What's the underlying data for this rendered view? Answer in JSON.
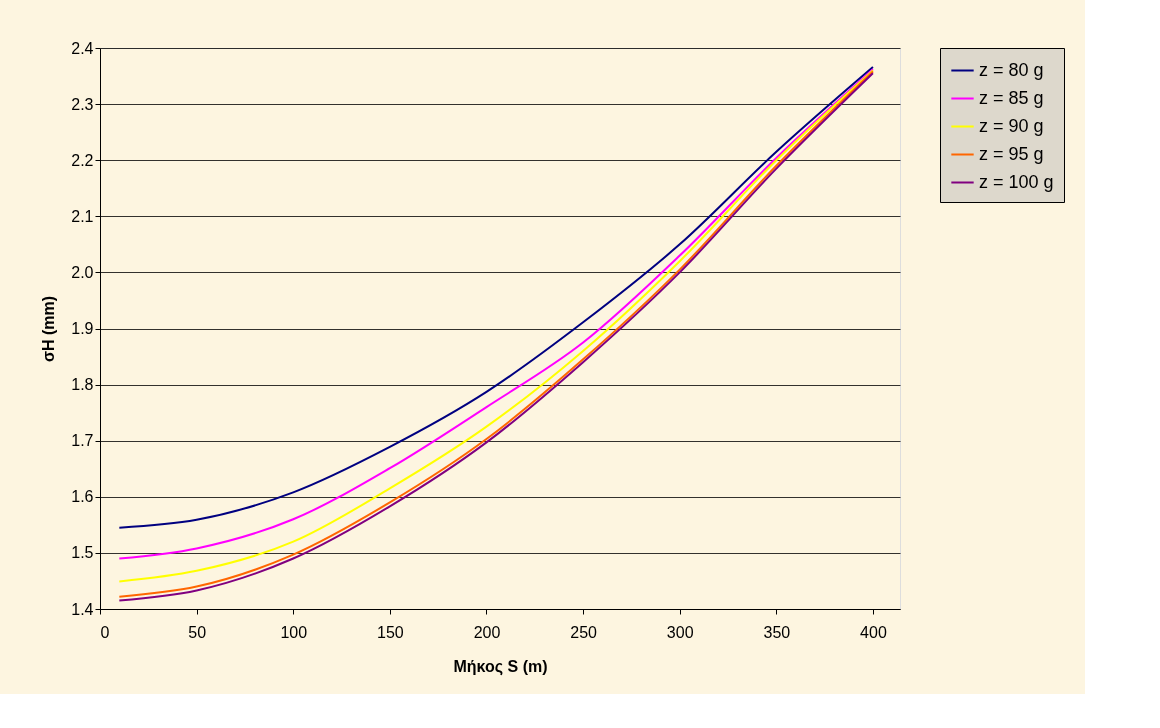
{
  "chart_data": {
    "type": "line",
    "xlabel": "Μήκος S (m)",
    "ylabel": "σH (mm)",
    "x": [
      10,
      50,
      100,
      150,
      200,
      250,
      300,
      350,
      400
    ],
    "xlim": [
      0,
      414
    ],
    "xticks": [
      0,
      50,
      100,
      150,
      200,
      250,
      300,
      350,
      400
    ],
    "ylim": [
      1.4,
      2.4
    ],
    "yticks": [
      {
        "value": 1.4,
        "label": "1.4"
      },
      {
        "value": 1.5,
        "label": "1.5"
      },
      {
        "value": 1.6,
        "label": "1.6"
      },
      {
        "value": 1.7,
        "label": "1.7"
      },
      {
        "value": 1.8,
        "label": "1.8"
      },
      {
        "value": 1.9,
        "label": "1.9"
      },
      {
        "value": 2.0,
        "label": "2.0"
      },
      {
        "value": 2.1,
        "label": "2.1"
      },
      {
        "value": 2.2,
        "label": "2.2"
      },
      {
        "value": 2.3,
        "label": "2.3"
      },
      {
        "value": 2.4,
        "label": "2.4"
      }
    ],
    "grid": "y",
    "legend": "right",
    "marker": "none",
    "line_style": "solid",
    "series": [
      {
        "name": "z = 80 g",
        "color": "#000080",
        "values": [
          1.545,
          1.559,
          1.608,
          1.689,
          1.787,
          1.911,
          2.05,
          2.215,
          2.366
        ]
      },
      {
        "name": "z = 85 g",
        "color": "#ff00ff",
        "values": [
          1.49,
          1.508,
          1.56,
          1.651,
          1.76,
          1.875,
          2.03,
          2.204,
          2.362
        ]
      },
      {
        "name": "z = 90 g",
        "color": "#ffff00",
        "values": [
          1.449,
          1.468,
          1.52,
          1.615,
          1.725,
          1.86,
          2.02,
          2.2,
          2.36
        ]
      },
      {
        "name": "z = 95 g",
        "color": "#ff6600",
        "values": [
          1.422,
          1.44,
          1.497,
          1.59,
          1.703,
          1.845,
          2.005,
          2.19,
          2.358
        ]
      },
      {
        "name": "z = 100 g",
        "color": "#800080",
        "values": [
          1.415,
          1.433,
          1.49,
          1.583,
          1.697,
          1.84,
          2.0,
          2.185,
          2.355
        ]
      }
    ]
  }
}
